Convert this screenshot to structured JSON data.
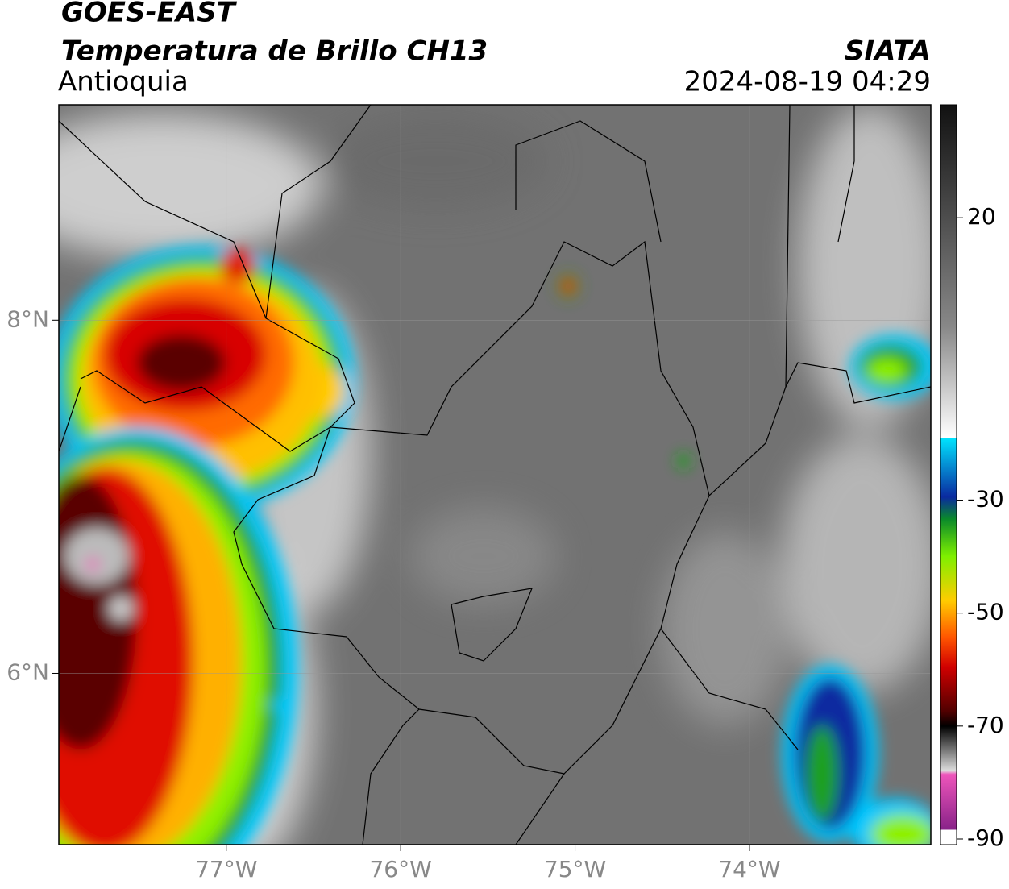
{
  "header": {
    "title": "GOES-EAST",
    "subtitle": "Temperatura de Brillo CH13",
    "region": "Antioquia",
    "source": "SIATA",
    "datetime": "2024-08-19 04:29"
  },
  "map": {
    "lonlim": [
      -77.96,
      -72.96
    ],
    "latlim": [
      5.03,
      9.22
    ],
    "lon_ticks": [
      {
        "value": -77,
        "label": "77°W"
      },
      {
        "value": -76,
        "label": "76°W"
      },
      {
        "value": -75,
        "label": "75°W"
      },
      {
        "value": -74,
        "label": "74°W"
      }
    ],
    "lat_ticks": [
      {
        "value": 8,
        "label": "8°N"
      },
      {
        "value": 6,
        "label": "6°N"
      }
    ],
    "grid": true
  },
  "colorbar": {
    "lim": [
      -91,
      40
    ],
    "ticks": [
      20,
      -30,
      -50,
      -70,
      -90
    ]
  }
}
